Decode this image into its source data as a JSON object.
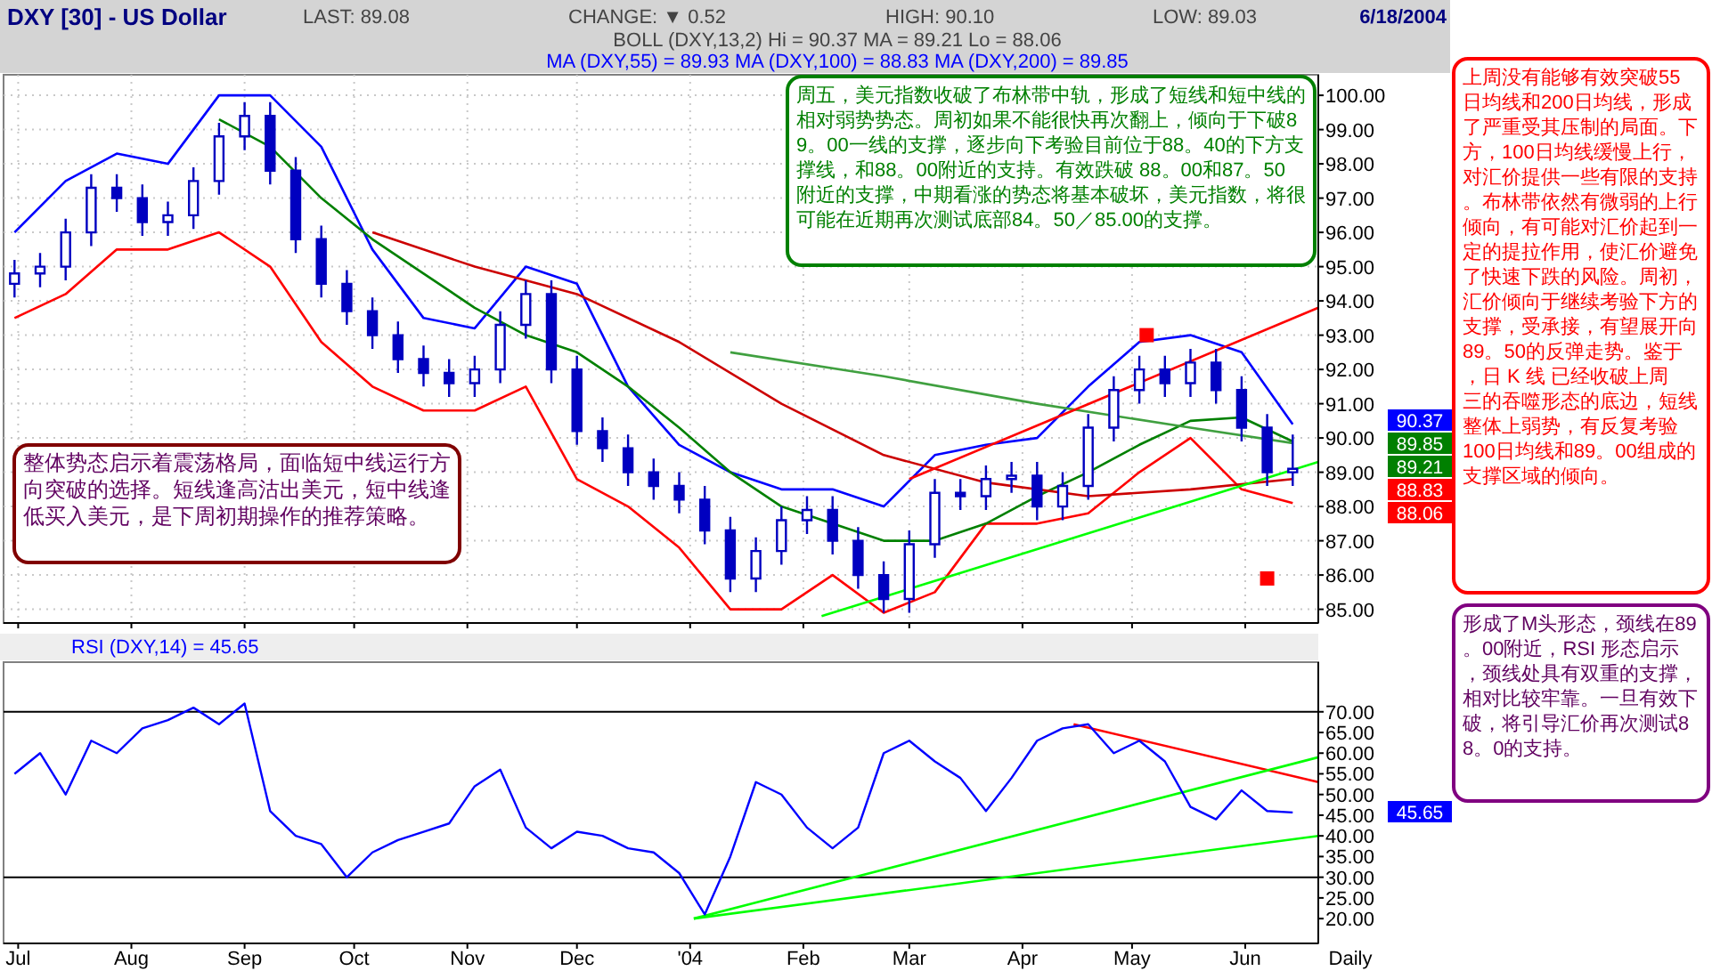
{
  "chart_data": [
    {
      "type": "candlestick",
      "title": "DXY [30] - US Dollar",
      "color": "#0000c0",
      "grid": true,
      "tick_labels": "y",
      "xlim": [
        "2003-06-27",
        "2004-06-21"
      ],
      "xticks": [
        {
          "value": "2003-07-01",
          "label": null
        },
        {
          "value": "2003-08-01",
          "label": null
        },
        {
          "value": "2003-09-01",
          "label": null
        },
        {
          "value": "2003-10-01",
          "label": null
        },
        {
          "value": "2003-11-01",
          "label": null
        },
        {
          "value": "2003-12-01",
          "label": null
        },
        {
          "value": "2004-01-01",
          "label": null
        },
        {
          "value": "2004-02-01",
          "label": null
        },
        {
          "value": "2004-03-01",
          "label": null
        },
        {
          "value": "2004-04-01",
          "label": null
        },
        {
          "value": "2004-05-01",
          "label": null
        },
        {
          "value": "2004-06-01",
          "label": null
        }
      ],
      "ylim": [
        84.6,
        100.6
      ],
      "yticks": [
        {
          "value": 85,
          "label": "85.00"
        },
        {
          "value": 86,
          "label": "86.00"
        },
        {
          "value": 87,
          "label": "87.00"
        },
        {
          "value": 88,
          "label": "88.00"
        },
        {
          "value": 89,
          "label": "89.00"
        },
        {
          "value": 90,
          "label": "90.00"
        },
        {
          "value": 91,
          "label": "91.00"
        },
        {
          "value": 92,
          "label": "92.00"
        },
        {
          "value": 93,
          "label": "93.00"
        },
        {
          "value": 94,
          "label": "94.00"
        },
        {
          "value": 95,
          "label": "95.00"
        },
        {
          "value": 96,
          "label": "96.00"
        },
        {
          "value": 97,
          "label": "97.00"
        },
        {
          "value": 98,
          "label": "98.00"
        },
        {
          "value": 99,
          "label": "99.00"
        },
        {
          "value": 100,
          "label": "100.00"
        }
      ],
      "x": [
        "2003-06-30",
        "2003-07-07",
        "2003-07-14",
        "2003-07-21",
        "2003-07-28",
        "2003-08-04",
        "2003-08-11",
        "2003-08-18",
        "2003-08-25",
        "2003-09-01",
        "2003-09-08",
        "2003-09-15",
        "2003-09-22",
        "2003-09-29",
        "2003-10-06",
        "2003-10-13",
        "2003-10-20",
        "2003-10-27",
        "2003-11-03",
        "2003-11-10",
        "2003-11-17",
        "2003-11-24",
        "2003-12-01",
        "2003-12-08",
        "2003-12-15",
        "2003-12-22",
        "2003-12-29",
        "2004-01-05",
        "2004-01-12",
        "2004-01-19",
        "2004-01-26",
        "2004-02-02",
        "2004-02-09",
        "2004-02-16",
        "2004-02-23",
        "2004-03-01",
        "2004-03-08",
        "2004-03-15",
        "2004-03-22",
        "2004-03-29",
        "2004-04-05",
        "2004-04-12",
        "2004-04-19",
        "2004-04-26",
        "2004-05-03",
        "2004-05-10",
        "2004-05-17",
        "2004-05-24",
        "2004-05-31",
        "2004-06-07",
        "2004-06-14"
      ],
      "ohlc": [
        [
          94.5,
          95.2,
          94.1,
          94.8
        ],
        [
          94.8,
          95.4,
          94.4,
          95.0
        ],
        [
          95.0,
          96.4,
          94.6,
          96.0
        ],
        [
          96.0,
          97.7,
          95.6,
          97.3
        ],
        [
          97.3,
          97.7,
          96.6,
          97.0
        ],
        [
          97.0,
          97.4,
          95.9,
          96.3
        ],
        [
          96.3,
          96.9,
          95.9,
          96.5
        ],
        [
          96.5,
          97.9,
          96.1,
          97.5
        ],
        [
          97.5,
          99.2,
          97.1,
          98.8
        ],
        [
          98.8,
          99.8,
          98.4,
          99.4
        ],
        [
          99.4,
          99.8,
          97.4,
          97.8
        ],
        [
          97.8,
          98.2,
          95.4,
          95.8
        ],
        [
          95.8,
          96.2,
          94.1,
          94.5
        ],
        [
          94.5,
          94.9,
          93.3,
          93.7
        ],
        [
          93.7,
          94.1,
          92.6,
          93.0
        ],
        [
          93.0,
          93.4,
          91.9,
          92.3
        ],
        [
          92.3,
          92.7,
          91.5,
          91.9
        ],
        [
          91.9,
          92.3,
          91.2,
          91.6
        ],
        [
          91.6,
          92.4,
          91.2,
          92.0
        ],
        [
          92.0,
          93.7,
          91.6,
          93.3
        ],
        [
          93.3,
          94.6,
          92.9,
          94.2
        ],
        [
          94.2,
          94.6,
          91.6,
          92.0
        ],
        [
          92.0,
          92.4,
          89.8,
          90.2
        ],
        [
          90.2,
          90.6,
          89.3,
          89.7
        ],
        [
          89.7,
          90.1,
          88.6,
          89.0
        ],
        [
          89.0,
          89.4,
          88.2,
          88.6
        ],
        [
          88.6,
          89.0,
          87.8,
          88.2
        ],
        [
          88.2,
          88.6,
          86.9,
          87.3
        ],
        [
          87.3,
          87.7,
          85.5,
          85.9
        ],
        [
          85.9,
          87.1,
          85.5,
          86.7
        ],
        [
          86.7,
          88.0,
          86.3,
          87.6
        ],
        [
          87.6,
          88.3,
          87.2,
          87.9
        ],
        [
          87.9,
          88.3,
          86.6,
          87.0
        ],
        [
          87.0,
          87.4,
          85.6,
          86.0
        ],
        [
          86.0,
          86.4,
          84.9,
          85.3
        ],
        [
          85.3,
          87.3,
          84.9,
          86.9
        ],
        [
          86.9,
          88.8,
          86.5,
          88.4
        ],
        [
          88.4,
          88.8,
          87.9,
          88.3
        ],
        [
          88.3,
          89.2,
          87.9,
          88.8
        ],
        [
          88.8,
          89.3,
          88.4,
          88.9
        ],
        [
          88.9,
          89.3,
          87.6,
          88.0
        ],
        [
          88.0,
          89.0,
          87.6,
          88.6
        ],
        [
          88.6,
          90.7,
          88.2,
          90.3
        ],
        [
          90.3,
          91.8,
          89.9,
          91.4
        ],
        [
          91.4,
          92.4,
          91.0,
          92.0
        ],
        [
          92.0,
          92.4,
          91.2,
          91.6
        ],
        [
          91.6,
          92.6,
          91.2,
          92.2
        ],
        [
          92.2,
          92.6,
          91.0,
          91.4
        ],
        [
          91.4,
          91.8,
          89.9,
          90.3
        ],
        [
          90.3,
          90.7,
          88.6,
          89.0
        ],
        [
          89.0,
          90.1,
          88.6,
          89.1
        ]
      ],
      "series": [
        {
          "type": "line",
          "color": "#0000ff",
          "x": [
            "2003-06-30",
            "2003-07-14",
            "2003-07-28",
            "2003-08-11",
            "2003-08-25",
            "2003-09-08",
            "2003-09-22",
            "2003-10-06",
            "2003-10-20",
            "2003-11-03",
            "2003-11-17",
            "2003-12-01",
            "2003-12-15",
            "2003-12-29",
            "2004-01-12",
            "2004-01-26",
            "2004-02-09",
            "2004-02-23",
            "2004-03-08",
            "2004-03-22",
            "2004-04-05",
            "2004-04-19",
            "2004-05-03",
            "2004-05-17",
            "2004-05-31",
            "2004-06-14"
          ],
          "values": [
            96.0,
            97.5,
            98.3,
            98.0,
            100.0,
            100.0,
            98.5,
            95.5,
            93.5,
            93.2,
            95.0,
            94.5,
            91.5,
            89.8,
            89.0,
            88.5,
            88.5,
            88.0,
            89.5,
            89.8,
            90.0,
            91.5,
            92.8,
            93.0,
            92.5,
            90.4
          ]
        },
        {
          "type": "line",
          "color": "#ff0000",
          "x": [
            "2003-06-30",
            "2003-07-14",
            "2003-07-28",
            "2003-08-11",
            "2003-08-25",
            "2003-09-08",
            "2003-09-22",
            "2003-10-06",
            "2003-10-20",
            "2003-11-03",
            "2003-11-17",
            "2003-12-01",
            "2003-12-15",
            "2003-12-29",
            "2004-01-12",
            "2004-01-26",
            "2004-02-09",
            "2004-02-23",
            "2004-03-08",
            "2004-03-22",
            "2004-04-05",
            "2004-04-19",
            "2004-05-03",
            "2004-05-17",
            "2004-05-31",
            "2004-06-14"
          ],
          "values": [
            93.5,
            94.2,
            95.5,
            95.5,
            96.0,
            95.0,
            92.8,
            91.5,
            90.8,
            90.8,
            91.5,
            88.8,
            88.0,
            86.8,
            85.0,
            85.0,
            86.0,
            84.9,
            85.5,
            87.5,
            87.5,
            87.8,
            89.0,
            90.0,
            88.5,
            88.1
          ]
        },
        {
          "type": "line",
          "color": "#008000",
          "x": [
            "2003-08-25",
            "2003-09-08",
            "2003-09-22",
            "2003-10-06",
            "2003-10-20",
            "2003-11-03",
            "2003-11-17",
            "2003-12-01",
            "2003-12-15",
            "2003-12-29",
            "2004-01-12",
            "2004-01-26",
            "2004-02-09",
            "2004-02-23",
            "2004-03-08",
            "2004-03-22",
            "2004-04-05",
            "2004-04-19",
            "2004-05-03",
            "2004-05-17",
            "2004-05-31",
            "2004-06-14"
          ],
          "values": [
            99.3,
            98.5,
            97.0,
            95.8,
            94.8,
            93.8,
            93.0,
            92.5,
            91.5,
            90.3,
            89.0,
            88.0,
            87.5,
            87.0,
            87.0,
            87.5,
            88.3,
            89.0,
            89.8,
            90.5,
            90.6,
            89.9
          ]
        },
        {
          "type": "line",
          "color": "#cc0000",
          "x": [
            "2003-10-06",
            "2003-11-03",
            "2003-12-01",
            "2003-12-29",
            "2004-01-26",
            "2004-02-23",
            "2004-03-22",
            "2004-04-19",
            "2004-05-17",
            "2004-06-14"
          ],
          "values": [
            96.0,
            95.0,
            94.2,
            92.8,
            91.0,
            89.5,
            88.7,
            88.3,
            88.5,
            88.8
          ]
        },
        {
          "type": "line",
          "color": "#40a040",
          "x": [
            "2004-01-12",
            "2004-02-23",
            "2004-04-05",
            "2004-05-17",
            "2004-06-14"
          ],
          "values": [
            92.5,
            91.8,
            91.0,
            90.3,
            89.85
          ]
        },
        {
          "type": "line",
          "color": "#ff0000",
          "x": [
            "2004-03-01",
            "2004-06-21"
          ],
          "values": [
            88.8,
            93.8
          ]
        },
        {
          "type": "line",
          "color": "#00ff00",
          "x": [
            "2004-02-06",
            "2004-06-21"
          ],
          "values": [
            84.8,
            89.3
          ]
        },
        {
          "type": "scatter",
          "marker": "square",
          "color": "#ff0000",
          "x": [
            "2004-05-05",
            "2004-06-07"
          ],
          "values": [
            93.0,
            85.9
          ]
        }
      ],
      "annotations": [
        "LAST: 89.08",
        "CHANGE: ▼ 0.52",
        "HIGH: 90.10",
        "LOW: 89.03",
        "6/18/2004",
        "BOLL (DXY,13,2) Hi = 90.37 MA = 89.21 Lo = 88.06",
        "MA (DXY,55) = 89.93 MA (DXY,100) = 88.83 MA (DXY,200) = 89.85",
        "周五，美元指数收破了布林带中轨，形成了短线和短中线的相对弱势势态。周初如果不能很快再次翻上，倾向于下破89。00一线的支撑，逐步向下考验目前位于88。40的下方支撑线，和88。00附近的支持。有效跌破 88。00和87。50附近的支撑，中期看涨的势态将基本破坏，美元指数，将很可能在近期再次测试底部84。50／85.00的支撑。",
        "整体势态启示着震荡格局，面临短中线运行方向突破的选择。短线逢高沽出美元，短中线逢低买入美元，是下周初期操作的推荐策略。",
        "上周没有能够有效突破55日均线和200日均线，形成了严重受其压制的局面。下方，100日均线缓慢上行，对汇价提供一些有限的支持。布林带依然有微弱的上行倾向，有可能对汇价起到一定的提拉作用，使汇价避免了快速下跌的风险。周初，汇价倾向于继续考验下方的支撑，受承接，有望展开向89。50的反弹走势。鉴于，日 K 线 已经收破上周三的吞噬形态的底边，短线整体上弱势，有反复考验 100日均线和89。00组成的支撑区域的倾向。",
        "形成了M头形态，颈线在89。00附近，RSI 形态启示，颈线处具有双重的支撑，相对比较牢靠。一旦有效下破，将引导汇价再次测试88。0的支持。",
        "90.37",
        "89.85",
        "89.21",
        "88.83",
        "88.06"
      ]
    },
    {
      "type": "line",
      "title": "RSI (DXY,14) = 45.65",
      "color": "#0000ff",
      "xlabel": "Daily",
      "grid": false,
      "xlim": [
        "2003-06-27",
        "2004-06-21"
      ],
      "xticks": [
        {
          "value": "2003-07-01",
          "label": "Jul"
        },
        {
          "value": "2003-08-01",
          "label": "Aug"
        },
        {
          "value": "2003-09-01",
          "label": "Sep"
        },
        {
          "value": "2003-10-01",
          "label": "Oct"
        },
        {
          "value": "2003-11-01",
          "label": "Nov"
        },
        {
          "value": "2003-12-01",
          "label": "Dec"
        },
        {
          "value": "2004-01-01",
          "label": "'04"
        },
        {
          "value": "2004-02-01",
          "label": "Feb"
        },
        {
          "value": "2004-03-01",
          "label": "Mar"
        },
        {
          "value": "2004-04-01",
          "label": "Apr"
        },
        {
          "value": "2004-05-01",
          "label": "May"
        },
        {
          "value": "2004-06-01",
          "label": "Jun"
        }
      ],
      "ylim": [
        14,
        82
      ],
      "yticks": [
        {
          "value": 20,
          "label": "20.00"
        },
        {
          "value": 25,
          "label": "25.00"
        },
        {
          "value": 30,
          "label": "30.00"
        },
        {
          "value": 35,
          "label": "35.00"
        },
        {
          "value": 40,
          "label": "40.00"
        },
        {
          "value": 45,
          "label": "45.00"
        },
        {
          "value": 50,
          "label": "50.00"
        },
        {
          "value": 55,
          "label": "55.00"
        },
        {
          "value": 60,
          "label": "60.00"
        },
        {
          "value": 65,
          "label": "65.00"
        },
        {
          "value": 70,
          "label": "70.00"
        }
      ],
      "ref_lines": [
        {
          "axis": "y",
          "value": 70,
          "color": "#000000"
        },
        {
          "axis": "y",
          "value": 30,
          "color": "#000000"
        }
      ],
      "x": [
        "2003-06-30",
        "2003-07-07",
        "2003-07-14",
        "2003-07-21",
        "2003-07-28",
        "2003-08-04",
        "2003-08-11",
        "2003-08-18",
        "2003-08-25",
        "2003-09-01",
        "2003-09-08",
        "2003-09-15",
        "2003-09-22",
        "2003-09-29",
        "2003-10-06",
        "2003-10-13",
        "2003-10-20",
        "2003-10-27",
        "2003-11-03",
        "2003-11-10",
        "2003-11-17",
        "2003-11-24",
        "2003-12-01",
        "2003-12-08",
        "2003-12-15",
        "2003-12-22",
        "2003-12-29",
        "2004-01-05",
        "2004-01-12",
        "2004-01-19",
        "2004-01-26",
        "2004-02-02",
        "2004-02-09",
        "2004-02-16",
        "2004-02-23",
        "2004-03-01",
        "2004-03-08",
        "2004-03-15",
        "2004-03-22",
        "2004-03-29",
        "2004-04-05",
        "2004-04-12",
        "2004-04-19",
        "2004-04-26",
        "2004-05-03",
        "2004-05-10",
        "2004-05-17",
        "2004-05-24",
        "2004-05-31",
        "2004-06-07",
        "2004-06-14"
      ],
      "values": [
        55,
        60,
        50,
        63,
        60,
        66,
        68,
        71,
        67,
        72,
        46,
        40,
        38,
        30,
        36,
        39,
        41,
        43,
        52,
        56,
        42,
        37,
        41,
        40,
        37,
        36,
        31,
        21,
        35,
        53,
        50,
        42,
        37,
        42,
        60,
        63,
        58,
        54,
        46,
        54,
        63,
        66,
        67,
        60,
        63,
        58,
        47,
        44,
        51,
        46,
        45.65
      ],
      "series": [
        {
          "type": "line",
          "color": "#ff0000",
          "x": [
            "2004-04-15",
            "2004-06-21"
          ],
          "values": [
            67,
            53
          ]
        },
        {
          "type": "line",
          "color": "#00ff00",
          "x": [
            "2004-01-02",
            "2004-06-21"
          ],
          "values": [
            20,
            59
          ]
        },
        {
          "type": "line",
          "color": "#00ff00",
          "x": [
            "2004-01-02",
            "2004-06-21"
          ],
          "values": [
            20,
            40
          ]
        }
      ],
      "annotations": [
        "45.65"
      ]
    }
  ]
}
